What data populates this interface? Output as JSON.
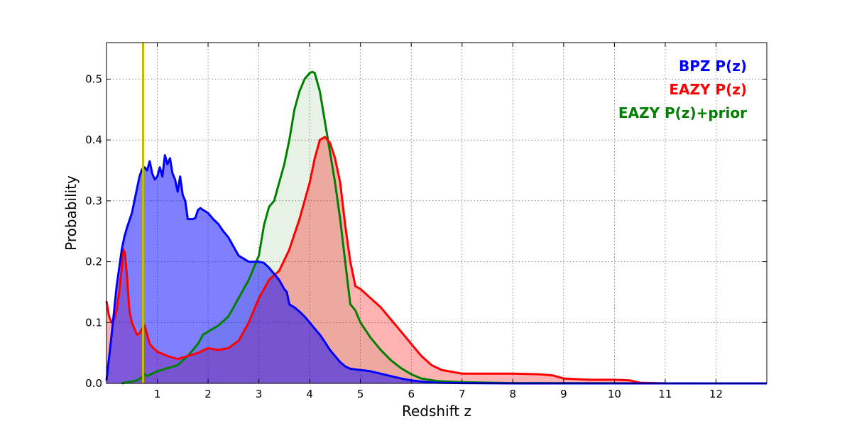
{
  "chart_data": {
    "type": "area",
    "title": "",
    "xlabel": "Redshift z",
    "ylabel": "Probability",
    "xlim": [
      0,
      13
    ],
    "ylim": [
      0,
      0.56
    ],
    "xticks": [
      1,
      2,
      3,
      4,
      5,
      6,
      7,
      8,
      9,
      10,
      11,
      12
    ],
    "xtick_labels": [
      "1",
      "2",
      "3",
      "4",
      "5",
      "6",
      "7",
      "8",
      "9",
      "10",
      "11",
      "12"
    ],
    "yticks": [
      0.0,
      0.1,
      0.2,
      0.3,
      0.4,
      0.5
    ],
    "ytick_labels": [
      "0.0",
      "0.1",
      "0.2",
      "0.3",
      "0.4",
      "0.5"
    ],
    "grid": true,
    "legend_placement": "top-right",
    "reference_line": {
      "x": 0.72,
      "color": "#bfbf00"
    },
    "series": [
      {
        "name": "BPZ P(z)",
        "color": "#0000ff",
        "fill": "#0000ff",
        "fill_opacity": 0.5,
        "x": [
          0.0,
          0.1,
          0.2,
          0.3,
          0.35,
          0.4,
          0.5,
          0.55,
          0.6,
          0.65,
          0.7,
          0.75,
          0.8,
          0.85,
          0.9,
          0.95,
          1.0,
          1.05,
          1.1,
          1.15,
          1.2,
          1.25,
          1.3,
          1.35,
          1.4,
          1.45,
          1.5,
          1.55,
          1.6,
          1.7,
          1.75,
          1.8,
          1.85,
          1.9,
          2.0,
          2.1,
          2.2,
          2.3,
          2.4,
          2.5,
          2.6,
          2.7,
          2.8,
          2.9,
          3.0,
          3.1,
          3.2,
          3.3,
          3.4,
          3.5,
          3.55,
          3.6,
          3.7,
          3.8,
          3.9,
          4.0,
          4.1,
          4.2,
          4.3,
          4.4,
          4.5,
          4.6,
          4.7,
          4.8,
          4.9,
          5.0,
          5.2,
          5.4,
          5.6,
          5.8,
          6.0,
          6.2,
          6.5,
          7.0,
          8.0,
          10.0,
          13.0
        ],
        "values": [
          0.005,
          0.08,
          0.16,
          0.22,
          0.24,
          0.255,
          0.28,
          0.3,
          0.32,
          0.34,
          0.352,
          0.355,
          0.35,
          0.365,
          0.345,
          0.335,
          0.34,
          0.355,
          0.34,
          0.375,
          0.36,
          0.37,
          0.345,
          0.335,
          0.315,
          0.34,
          0.31,
          0.3,
          0.27,
          0.27,
          0.272,
          0.285,
          0.288,
          0.285,
          0.28,
          0.27,
          0.262,
          0.25,
          0.24,
          0.225,
          0.21,
          0.205,
          0.2,
          0.2,
          0.2,
          0.198,
          0.19,
          0.18,
          0.17,
          0.155,
          0.15,
          0.13,
          0.125,
          0.118,
          0.11,
          0.1,
          0.09,
          0.08,
          0.068,
          0.055,
          0.045,
          0.035,
          0.028,
          0.024,
          0.023,
          0.022,
          0.02,
          0.016,
          0.012,
          0.008,
          0.005,
          0.003,
          0.001,
          0.0005,
          0.0,
          0.0,
          0.0
        ]
      },
      {
        "name": "EAZY P(z)",
        "color": "#ff0000",
        "fill": "#ff0000",
        "fill_opacity": 0.3,
        "x": [
          0.0,
          0.05,
          0.1,
          0.15,
          0.2,
          0.25,
          0.3,
          0.33,
          0.36,
          0.4,
          0.45,
          0.5,
          0.55,
          0.6,
          0.65,
          0.7,
          0.75,
          0.8,
          0.85,
          0.9,
          1.0,
          1.2,
          1.4,
          1.6,
          1.8,
          2.0,
          2.2,
          2.4,
          2.6,
          2.8,
          3.0,
          3.2,
          3.4,
          3.6,
          3.8,
          4.0,
          4.1,
          4.2,
          4.3,
          4.4,
          4.5,
          4.6,
          4.7,
          4.8,
          4.9,
          5.0,
          5.2,
          5.4,
          5.6,
          5.8,
          6.0,
          6.2,
          6.4,
          6.6,
          7.0,
          7.5,
          8.0,
          8.5,
          8.8,
          9.0,
          9.5,
          10.0,
          10.3,
          10.5,
          11.0,
          11.8
        ],
        "values": [
          0.135,
          0.11,
          0.1,
          0.105,
          0.12,
          0.15,
          0.19,
          0.22,
          0.215,
          0.18,
          0.12,
          0.1,
          0.09,
          0.08,
          0.082,
          0.09,
          0.095,
          0.08,
          0.065,
          0.06,
          0.052,
          0.045,
          0.04,
          0.045,
          0.05,
          0.058,
          0.055,
          0.058,
          0.07,
          0.1,
          0.14,
          0.17,
          0.185,
          0.22,
          0.27,
          0.33,
          0.37,
          0.4,
          0.405,
          0.395,
          0.37,
          0.33,
          0.26,
          0.2,
          0.16,
          0.155,
          0.14,
          0.125,
          0.105,
          0.085,
          0.065,
          0.045,
          0.03,
          0.022,
          0.016,
          0.016,
          0.016,
          0.015,
          0.013,
          0.008,
          0.006,
          0.006,
          0.005,
          0.001,
          0.0,
          0.0
        ]
      },
      {
        "name": "EAZY P(z)+prior",
        "color": "#008000",
        "fill": "#008000",
        "fill_opacity": 0.1,
        "x": [
          0.3,
          0.4,
          0.5,
          0.6,
          0.7,
          0.75,
          0.8,
          1.0,
          1.2,
          1.4,
          1.6,
          1.8,
          1.9,
          2.0,
          2.2,
          2.4,
          2.6,
          2.8,
          3.0,
          3.1,
          3.2,
          3.3,
          3.4,
          3.5,
          3.6,
          3.7,
          3.8,
          3.9,
          4.0,
          4.05,
          4.1,
          4.2,
          4.3,
          4.4,
          4.5,
          4.6,
          4.7,
          4.8,
          4.9,
          5.0,
          5.2,
          5.4,
          5.6,
          5.8,
          6.0,
          6.2,
          6.5,
          7.0,
          8.0,
          11.8
        ],
        "values": [
          0.0,
          0.002,
          0.003,
          0.005,
          0.01,
          0.015,
          0.012,
          0.02,
          0.025,
          0.03,
          0.045,
          0.065,
          0.08,
          0.085,
          0.095,
          0.11,
          0.14,
          0.17,
          0.21,
          0.26,
          0.29,
          0.3,
          0.33,
          0.36,
          0.4,
          0.45,
          0.48,
          0.5,
          0.51,
          0.512,
          0.51,
          0.48,
          0.43,
          0.38,
          0.33,
          0.27,
          0.2,
          0.13,
          0.12,
          0.1,
          0.075,
          0.055,
          0.038,
          0.025,
          0.015,
          0.008,
          0.004,
          0.002,
          0.0005,
          0.0
        ]
      }
    ]
  }
}
